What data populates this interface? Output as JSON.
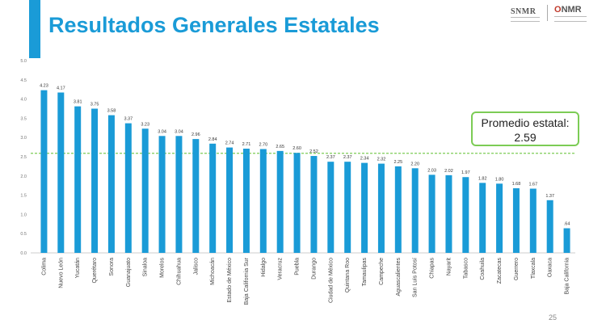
{
  "header": {
    "title": "Resultados Generales Estatales",
    "logo_left": "SNMR",
    "logo_right_mark": "O",
    "logo_right_text": "NMR"
  },
  "average": {
    "label": "Promedio estatal:",
    "value": "2.59",
    "numeric": 2.59
  },
  "page_number": "25",
  "colors": {
    "accent": "#1a9bd7",
    "bar": "#1a9bd7",
    "average_line": "#7ccc55"
  },
  "chart_data": {
    "type": "bar",
    "categories": [
      "Colima",
      "Nuevo León",
      "Yucatán",
      "Querétaro",
      "Sonora",
      "Guanajuato",
      "Sinaloa",
      "Morelos",
      "Chihuahua",
      "Jalisco",
      "Michoacán",
      "Estado de México",
      "Baja California Sur",
      "Hidalgo",
      "Veracruz",
      "Puebla",
      "Durango",
      "Ciudad de México",
      "Quintana Roo",
      "Tamaulipas",
      "Campeche",
      "Aguascalientes",
      "San Luis Potosí",
      "Chiapas",
      "Nayarit",
      "Tabasco",
      "Coahuila",
      "Zacatecas",
      "Guerrero",
      "Tlaxcala",
      "Oaxaca",
      "Baja California"
    ],
    "values": [
      4.23,
      4.17,
      3.81,
      3.75,
      3.58,
      3.37,
      3.23,
      3.04,
      3.04,
      2.96,
      2.84,
      2.74,
      2.71,
      2.7,
      2.65,
      2.6,
      2.52,
      2.37,
      2.37,
      2.34,
      2.32,
      2.25,
      2.2,
      2.03,
      2.02,
      1.97,
      1.82,
      1.8,
      1.68,
      1.67,
      1.37,
      0.64
    ],
    "value_labels": [
      "4.23",
      "4.17",
      "3.81",
      "3.75",
      "3.58",
      "3.37",
      "3.23",
      "3.04",
      "3.04",
      "2.96",
      "2.84",
      "2.74",
      "2.71",
      "2.70",
      "2.65",
      "2.60",
      "2.52",
      "2.37",
      "2.37",
      "2.34",
      "2.32",
      "2.25",
      "2.20",
      "2.03",
      "2.02",
      "1.97",
      "1.82",
      "1.80",
      "1.68",
      "1.67",
      "1.37",
      ".64"
    ],
    "yticks": [
      "0.0",
      "0.5",
      "1.0",
      "1.5",
      "2.0",
      "2.5",
      "3.0",
      "3.5",
      "4.0",
      "4.5",
      "5.0"
    ],
    "ylim": [
      0,
      5
    ],
    "grid": false,
    "reference_line": 2.59,
    "title": "",
    "xlabel": "",
    "ylabel": ""
  }
}
